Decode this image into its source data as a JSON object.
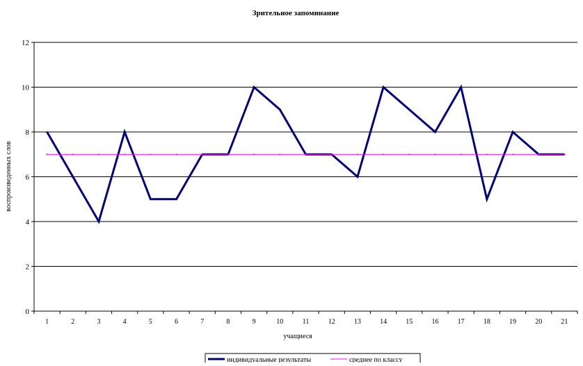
{
  "chart_data": {
    "type": "line",
    "title": "Зрительное запоминание",
    "xlabel": "учащиеся",
    "ylabel": "воспроизведенных слов",
    "categories": [
      "1",
      "2",
      "3",
      "4",
      "5",
      "6",
      "7",
      "8",
      "9",
      "10",
      "11",
      "12",
      "13",
      "14",
      "15",
      "16",
      "17",
      "18",
      "19",
      "20",
      "21"
    ],
    "ylim": [
      0,
      12
    ],
    "yticks": [
      0,
      2,
      4,
      6,
      8,
      10,
      12
    ],
    "grid": true,
    "legend_position": "bottom",
    "series": [
      {
        "name": "индивидуальные результаты",
        "values": [
          8,
          6,
          4,
          8,
          5,
          5,
          7,
          7,
          10,
          9,
          7,
          7,
          6,
          10,
          9,
          8,
          10,
          5,
          8,
          7,
          7
        ],
        "color": "#000080"
      },
      {
        "name": "среднее по классу",
        "values": [
          7,
          7,
          7,
          7,
          7,
          7,
          7,
          7,
          7,
          7,
          7,
          7,
          7,
          7,
          7,
          7,
          7,
          7,
          7,
          7,
          7
        ],
        "color": "#ff00ff"
      }
    ]
  }
}
